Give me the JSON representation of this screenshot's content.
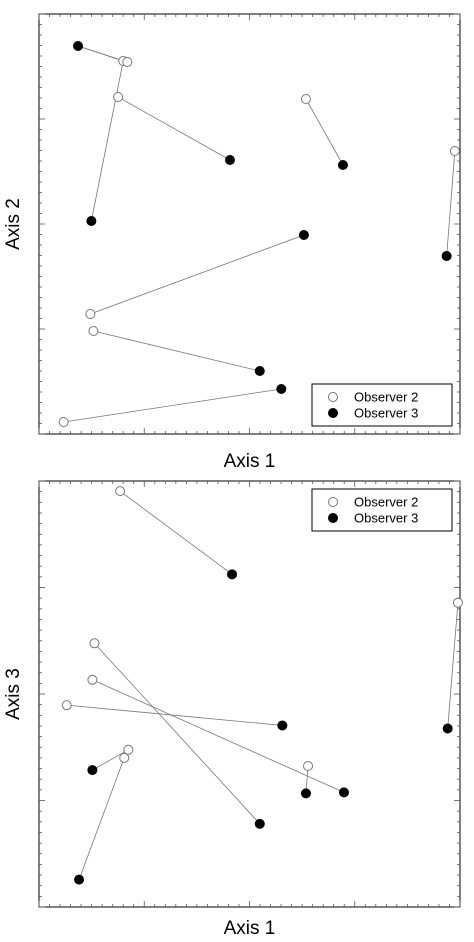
{
  "colors": {
    "frame": "#000000",
    "link": "#777777",
    "observer2_marker": "#ffffff",
    "observer3_marker": "#000000"
  },
  "chart_data": [
    {
      "type": "scatter",
      "title": "",
      "xlabel": "Axis 1",
      "ylabel": "Axis 2",
      "xlim": [
        0,
        410
      ],
      "ylim": [
        0,
        420
      ],
      "legend": {
        "placement": "bottom-right",
        "entries": [
          "Observer 2",
          "Observer 3"
        ]
      },
      "series": [
        {
          "name": "Observer 2",
          "marker": "open-circle",
          "points": [
            [
              82,
              373
            ],
            [
              86,
              372
            ],
            [
              77,
              337
            ],
            [
              260,
              335
            ],
            [
              405,
              283
            ],
            [
              50,
              120
            ],
            [
              53,
              103
            ],
            [
              24,
              12
            ]
          ]
        },
        {
          "name": "Observer 3",
          "marker": "filled-circle",
          "points": [
            [
              38,
              388
            ],
            [
              51,
              213
            ],
            [
              186,
              274
            ],
            [
              296,
              269
            ],
            [
              397,
              178
            ],
            [
              258,
              199
            ],
            [
              215,
              63
            ],
            [
              236,
              45
            ]
          ]
        }
      ],
      "pairs": [
        [
          0,
          0
        ],
        [
          1,
          0
        ],
        [
          2,
          2
        ],
        [
          3,
          3
        ],
        [
          4,
          4
        ],
        [
          5,
          5
        ],
        [
          6,
          6
        ],
        [
          7,
          7
        ],
        [
          0,
          1
        ]
      ]
    },
    {
      "type": "scatter",
      "title": "",
      "xlabel": "Axis 1",
      "ylabel": "Axis 3",
      "xlim": [
        0,
        410
      ],
      "ylim": [
        0,
        420
      ],
      "legend": {
        "placement": "top-right",
        "entries": [
          "Observer 2",
          "Observer 3"
        ]
      },
      "series": [
        {
          "name": "Observer 2",
          "marker": "open-circle",
          "points": [
            [
              79,
              410
            ],
            [
              408,
              300
            ],
            [
              54,
              260
            ],
            [
              52,
              224
            ],
            [
              27,
              199
            ],
            [
              87,
              155
            ],
            [
              83,
              147
            ],
            [
              262,
              139
            ]
          ]
        },
        {
          "name": "Observer 3",
          "marker": "filled-circle",
          "points": [
            [
              188,
              328
            ],
            [
              398,
              176
            ],
            [
              215,
              82
            ],
            [
              297,
              113
            ],
            [
              237,
              179
            ],
            [
              52,
              135
            ],
            [
              39,
              27
            ],
            [
              260,
              112
            ]
          ]
        }
      ],
      "pairs": [
        [
          0,
          0
        ],
        [
          1,
          1
        ],
        [
          2,
          2
        ],
        [
          3,
          3
        ],
        [
          4,
          4
        ],
        [
          5,
          5
        ],
        [
          6,
          6
        ],
        [
          7,
          7
        ]
      ]
    }
  ]
}
